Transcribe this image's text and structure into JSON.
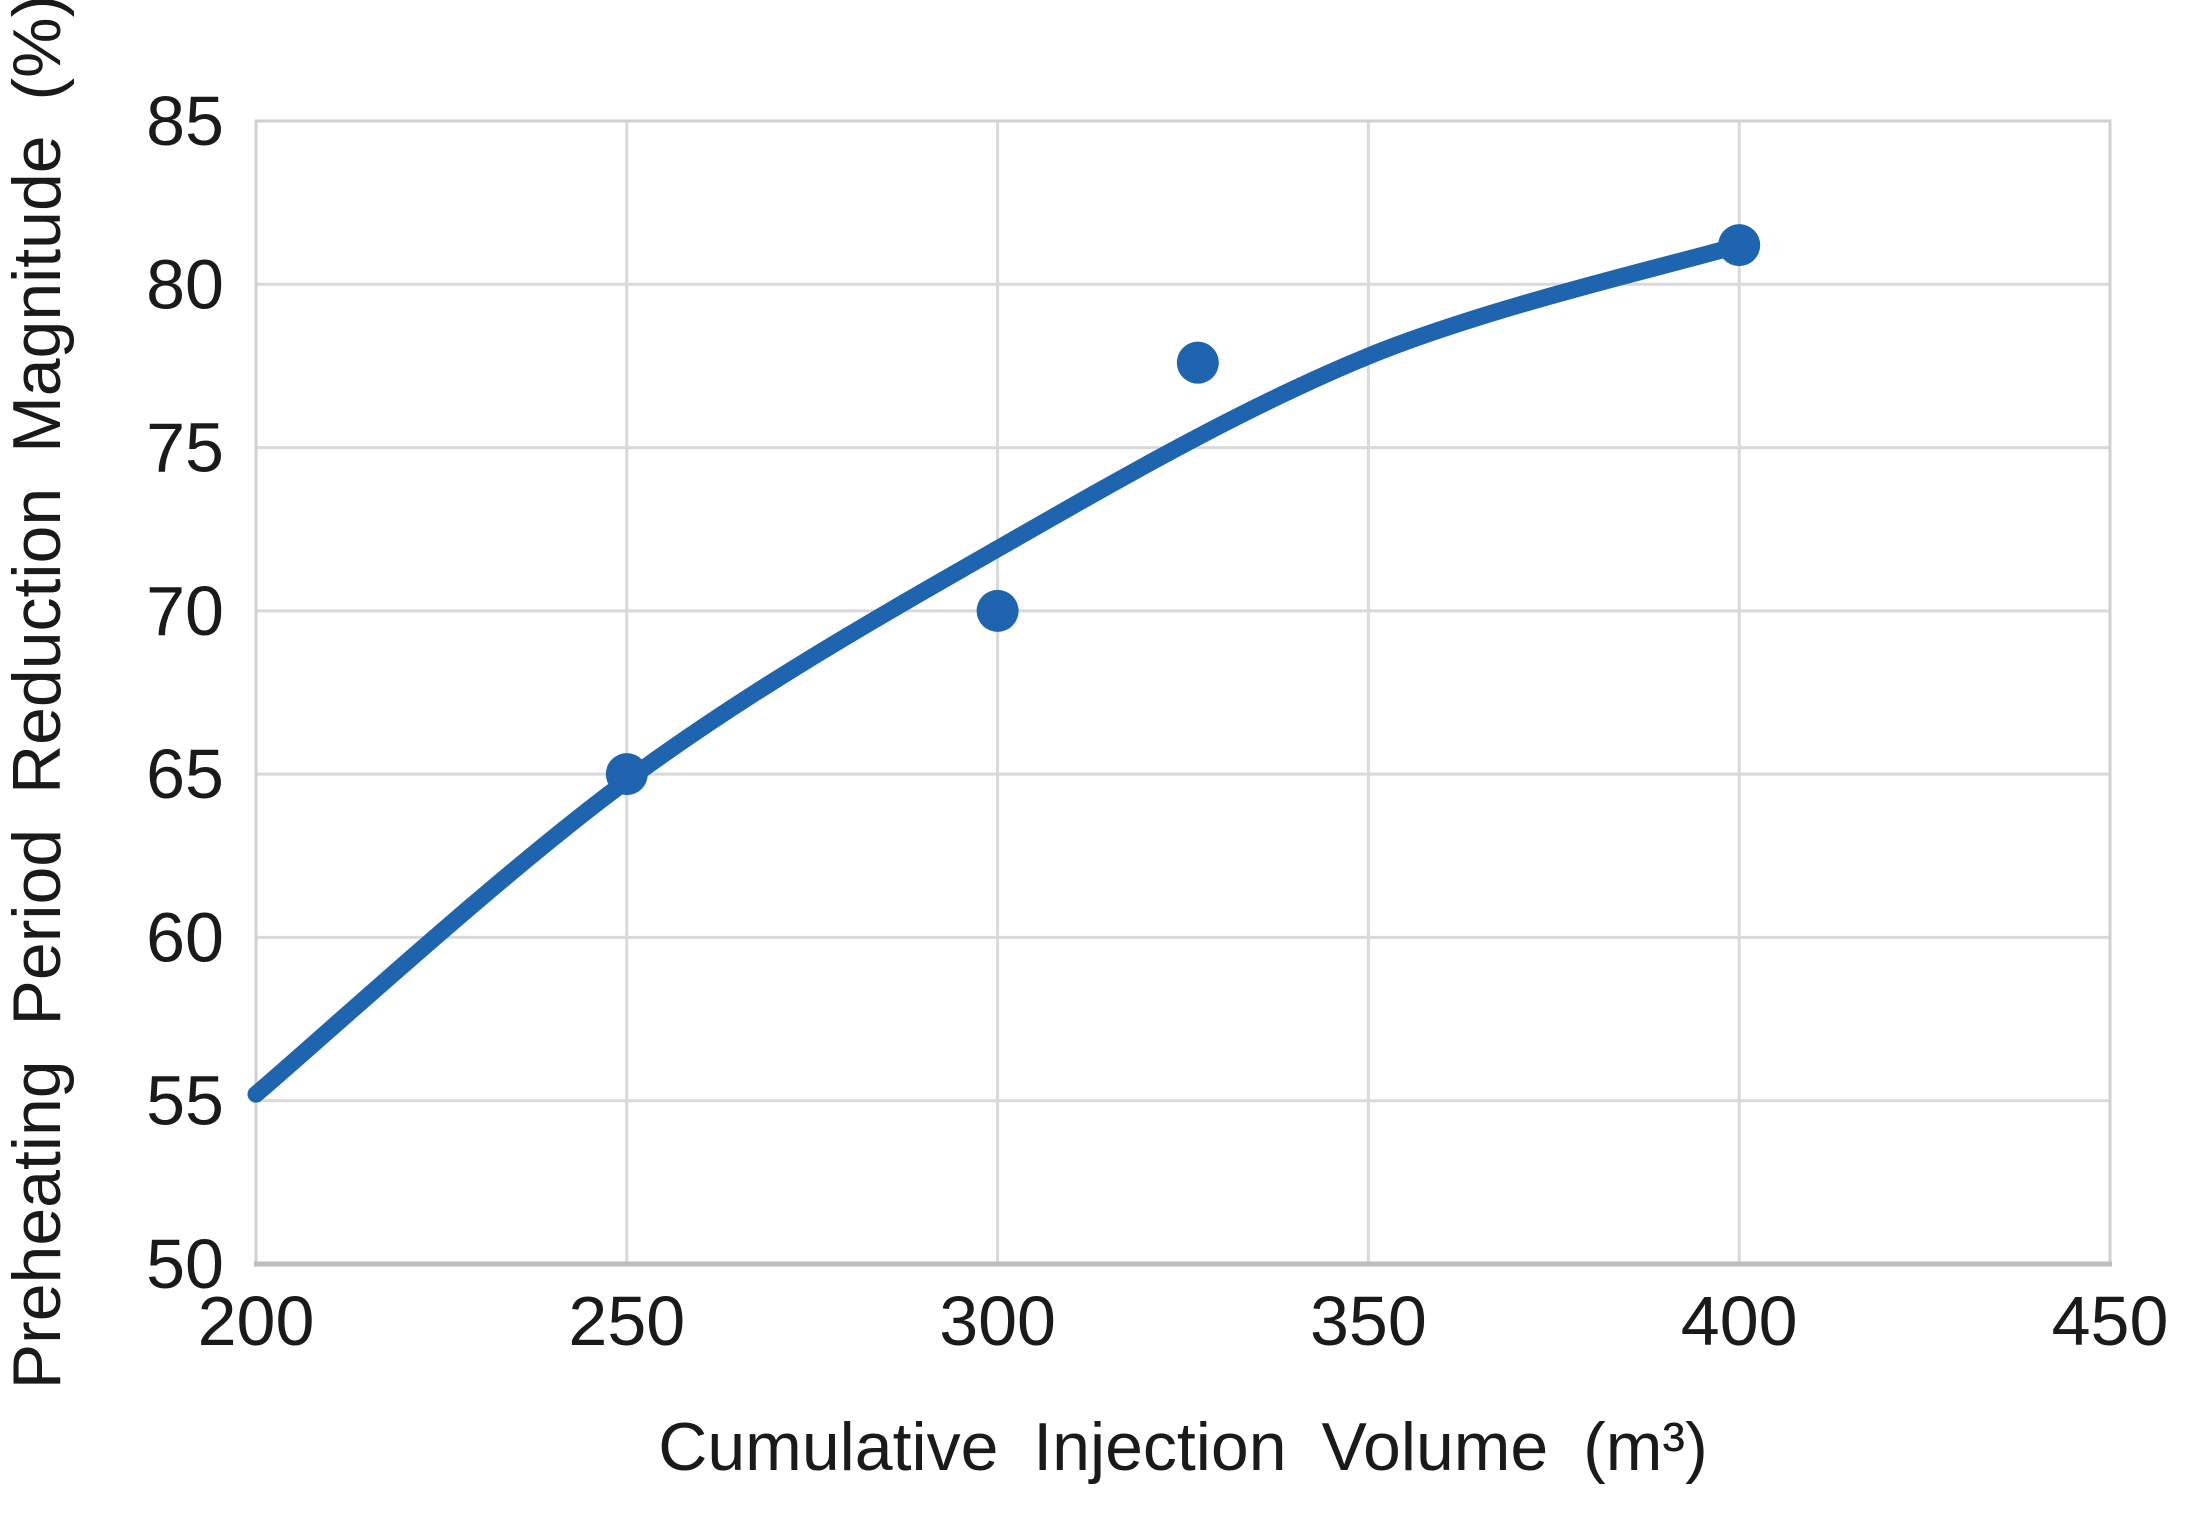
{
  "chart_data": {
    "type": "scatter",
    "title": "",
    "xlabel": "Cumulative Injection Volume (m³)",
    "ylabel": "Preheating Period Reduction Magnitude (%)",
    "xlim": [
      200,
      450
    ],
    "ylim": [
      50,
      85
    ],
    "x_ticks": [
      200,
      250,
      300,
      350,
      400,
      450
    ],
    "y_ticks": [
      50,
      55,
      60,
      65,
      70,
      75,
      80,
      85
    ],
    "grid": true,
    "legend": "none",
    "points": [
      {
        "x": 250,
        "y": 65.0
      },
      {
        "x": 300,
        "y": 70.0
      },
      {
        "x": 327,
        "y": 77.6
      },
      {
        "x": 400,
        "y": 81.2
      }
    ],
    "trendline": {
      "type": "smooth",
      "points": [
        {
          "x": 200,
          "y": 55.2
        },
        {
          "x": 250,
          "y": 64.8
        },
        {
          "x": 300,
          "y": 71.9
        },
        {
          "x": 350,
          "y": 77.8
        },
        {
          "x": 400,
          "y": 81.2
        }
      ]
    },
    "colors": {
      "series": "#1e64af",
      "grid": "#d9d9d9",
      "plot_border": "#d0d0d0",
      "axis_line": "#bdbdbd",
      "text": "#1a1a1a",
      "background": "#ffffff"
    }
  }
}
